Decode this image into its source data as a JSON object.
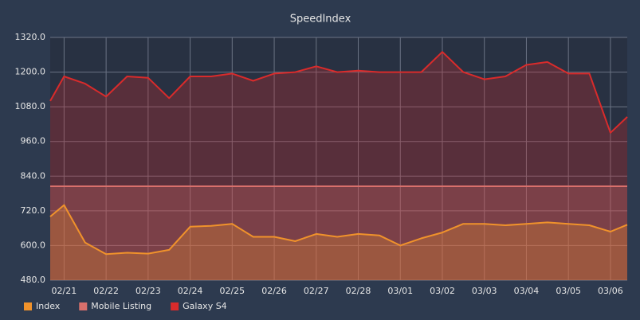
{
  "chart_data": {
    "type": "area",
    "title": "SpeedIndex",
    "x": [
      -0.33,
      0,
      0.5,
      1,
      1.5,
      2,
      2.5,
      3,
      3.5,
      4,
      4.5,
      5,
      5.5,
      6,
      6.5,
      7,
      7.5,
      8,
      8.5,
      9,
      9.5,
      10,
      10.5,
      11,
      11.5,
      12,
      12.5,
      13,
      13.4
    ],
    "xlim": [
      -0.33,
      13.4
    ],
    "xticks": [
      {
        "value": 0,
        "label": "02/21"
      },
      {
        "value": 1,
        "label": "02/22"
      },
      {
        "value": 2,
        "label": "02/23"
      },
      {
        "value": 3,
        "label": "02/24"
      },
      {
        "value": 4,
        "label": "02/25"
      },
      {
        "value": 5,
        "label": "02/26"
      },
      {
        "value": 6,
        "label": "02/27"
      },
      {
        "value": 7,
        "label": "02/28"
      },
      {
        "value": 8,
        "label": "03/01"
      },
      {
        "value": 9,
        "label": "03/02"
      },
      {
        "value": 10,
        "label": "03/03"
      },
      {
        "value": 11,
        "label": "03/04"
      },
      {
        "value": 12,
        "label": "03/05"
      },
      {
        "value": 13,
        "label": "03/06"
      }
    ],
    "ylim": [
      480,
      1320
    ],
    "yticks": [
      {
        "value": 480,
        "label": "480.0"
      },
      {
        "value": 600,
        "label": "600.0"
      },
      {
        "value": 720,
        "label": "720.0"
      },
      {
        "value": 840,
        "label": "840.0"
      },
      {
        "value": 960,
        "label": "960.0"
      },
      {
        "value": 1080,
        "label": "1080.0"
      },
      {
        "value": 1200,
        "label": "1200.0"
      },
      {
        "value": 1320,
        "label": "1320.0"
      }
    ],
    "grid": true,
    "legend": "bottom-left",
    "series": [
      {
        "name": "Index",
        "color": "#f0922b",
        "values": [
          700,
          740,
          610,
          570,
          575,
          572,
          585,
          665,
          668,
          675,
          630,
          630,
          615,
          640,
          630,
          640,
          635,
          600,
          625,
          645,
          675,
          675,
          670,
          675,
          680,
          675,
          670,
          648,
          672
        ]
      },
      {
        "name": "Mobile Listing",
        "color": "#d9706c",
        "values": [
          805,
          805,
          805,
          805,
          805,
          805,
          805,
          805,
          805,
          805,
          805,
          805,
          805,
          805,
          805,
          805,
          805,
          805,
          805,
          805,
          805,
          805,
          805,
          805,
          805,
          805,
          805,
          805,
          805
        ]
      },
      {
        "name": "Galaxy S4",
        "color": "#d92b2b",
        "values": [
          1100,
          1185,
          1160,
          1115,
          1185,
          1180,
          1110,
          1185,
          1185,
          1195,
          1170,
          1195,
          1200,
          1220,
          1200,
          1205,
          1200,
          1200,
          1200,
          1270,
          1200,
          1175,
          1185,
          1225,
          1235,
          1195,
          1195,
          990,
          1045
        ]
      }
    ]
  }
}
